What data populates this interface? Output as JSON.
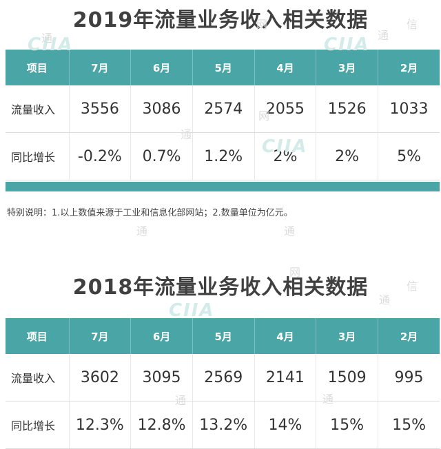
{
  "tables": [
    {
      "id": "2019",
      "title": "2019年流量业务收入相关数据",
      "headers": [
        "项目",
        "7月",
        "6月",
        "5月",
        "4月",
        "3月",
        "2月"
      ],
      "rows": [
        {
          "label": "流量收入",
          "values": [
            "3556",
            "3086",
            "2574",
            "2055",
            "1526",
            "1033"
          ]
        },
        {
          "label": "同比增长",
          "values": [
            "-0.2%",
            "0.7%",
            "1.2%",
            "2%",
            "2%",
            "5%"
          ]
        }
      ]
    },
    {
      "id": "2018",
      "title": "2018年流量业务收入相关数据",
      "headers": [
        "项目",
        "7月",
        "6月",
        "5月",
        "4月",
        "3月",
        "2月"
      ],
      "rows": [
        {
          "label": "流量收入",
          "values": [
            "3602",
            "3095",
            "2569",
            "2141",
            "1509",
            "995"
          ]
        },
        {
          "label": "同比增长",
          "values": [
            "12.3%",
            "12.8%",
            "13.2%",
            "14%",
            "15%",
            "15%"
          ]
        }
      ]
    }
  ],
  "note": "特别说明：1.以上数值来源于工业和信息化部网站；2.数量单位为亿元。",
  "watermark": {
    "logo": "CIIA",
    "chars": [
      "通",
      "信",
      "网"
    ]
  },
  "colors": {
    "header_bg": "#4aa5a6",
    "header_text": "#ffffff",
    "title_text": "#404040",
    "body_text": "#333333"
  }
}
